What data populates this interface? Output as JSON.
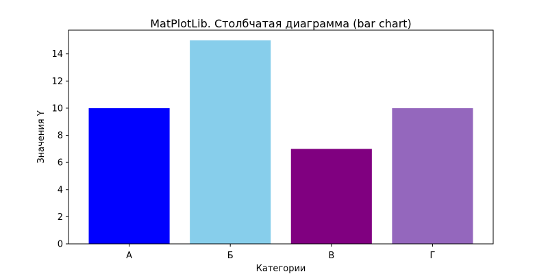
{
  "chart_data": {
    "type": "bar",
    "title": "MatPlotLib. Столбчатая диаграмма (bar chart)",
    "xlabel": "Категории",
    "ylabel": "Значения Y",
    "categories": [
      "А",
      "Б",
      "В",
      "Г"
    ],
    "values": [
      10,
      15,
      7,
      10
    ],
    "colors": [
      "#0000ff",
      "#87ceeb",
      "#800080",
      "#9467bd"
    ],
    "ylim": [
      0,
      15.75
    ],
    "yticks": [
      0,
      2,
      4,
      6,
      8,
      10,
      12,
      14
    ],
    "grid": false
  }
}
